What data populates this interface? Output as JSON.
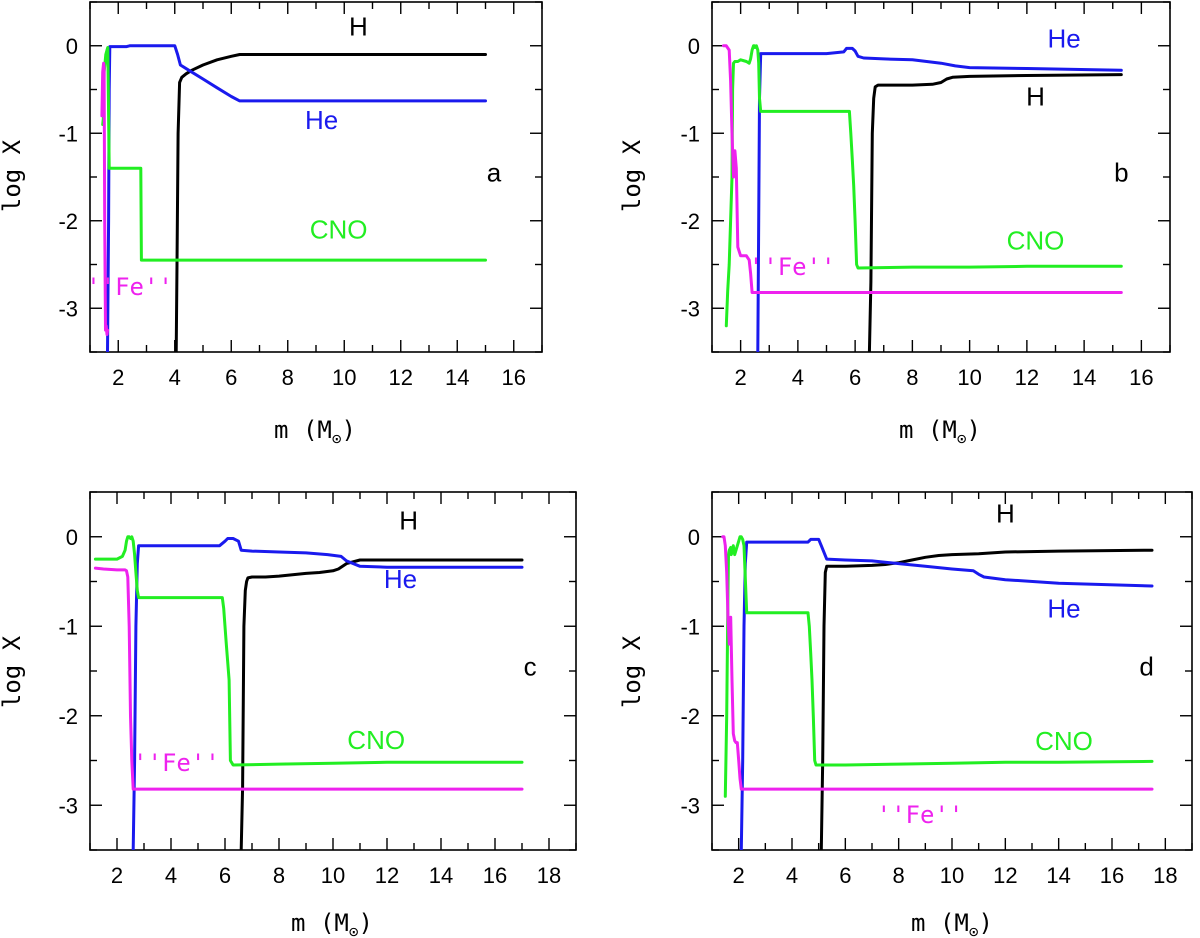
{
  "colors": {
    "H": "#000000",
    "He": "#1a1aee",
    "CNO": "#22ee22",
    "Fe": "#ee22ee"
  },
  "chart_data": [
    {
      "type": "line",
      "panel": "a",
      "xlabel": "m (M",
      "xlabel_sub": "⊙",
      "xlabel_close": ")",
      "ylabel": "log X",
      "xlim": [
        1,
        17
      ],
      "ylim": [
        -3.5,
        0.5
      ],
      "xticks": [
        2,
        4,
        6,
        8,
        10,
        12,
        14,
        16
      ],
      "xtick_labels": [
        "2",
        "4",
        "6",
        "8",
        "10",
        "12",
        "14",
        "16"
      ],
      "yticks": [
        0,
        -1,
        -2,
        -3
      ],
      "ytick_labels": [
        "0",
        "-1",
        "-2",
        "-3"
      ],
      "series": [
        {
          "name": "H",
          "color_key": "H",
          "x": [
            4.05,
            4.08,
            4.12,
            4.17,
            4.25,
            4.4,
            4.6,
            5.0,
            5.5,
            6.0,
            6.3,
            8,
            10,
            12,
            15
          ],
          "y": [
            -3.5,
            -2.5,
            -1.0,
            -0.42,
            -0.36,
            -0.32,
            -0.28,
            -0.22,
            -0.16,
            -0.12,
            -0.1,
            -0.1,
            -0.1,
            -0.1,
            -0.1
          ]
        },
        {
          "name": "He",
          "color_key": "He",
          "x": [
            1.62,
            1.66,
            1.68,
            1.7,
            2.3,
            2.4,
            3.5,
            4.0,
            4.1,
            4.2,
            4.5,
            5.0,
            5.5,
            6.0,
            6.3,
            8,
            10,
            12,
            15
          ],
          "y": [
            -3.5,
            -2.0,
            -0.5,
            -0.01,
            -0.01,
            0.0,
            0.0,
            0.0,
            -0.1,
            -0.22,
            -0.28,
            -0.38,
            -0.48,
            -0.58,
            -0.63,
            -0.63,
            -0.63,
            -0.63,
            -0.63
          ]
        },
        {
          "name": "CNO",
          "color_key": "CNO",
          "x": [
            1.45,
            1.48,
            1.5,
            1.53,
            1.56,
            1.6,
            1.63,
            1.66,
            1.68,
            1.7,
            2.8,
            2.82,
            4,
            6,
            8,
            10,
            12,
            15
          ],
          "y": [
            -0.9,
            -0.8,
            -0.3,
            -0.2,
            -0.1,
            -0.05,
            -0.02,
            -0.8,
            -1.4,
            -1.4,
            -1.4,
            -2.45,
            -2.45,
            -2.45,
            -2.45,
            -2.45,
            -2.45,
            -2.45
          ]
        },
        {
          "name": "Fe",
          "color_key": "Fe",
          "x": [
            1.42,
            1.45,
            1.48,
            1.5,
            1.52,
            1.55,
            1.57,
            1.6,
            1.62
          ],
          "y": [
            -0.8,
            -0.3,
            -0.2,
            -0.25,
            -2.0,
            -3.25,
            -3.2,
            -3.3,
            -3.25
          ]
        }
      ],
      "annotations": [
        {
          "text": "H",
          "color_key": "H",
          "x": 10.5,
          "y": 0.12
        },
        {
          "text": "He",
          "color_key": "He",
          "x": 9.2,
          "y": -0.95
        },
        {
          "text": "CNO",
          "color_key": "CNO",
          "x": 9.8,
          "y": -2.2
        },
        {
          "text": "''Fe''",
          "color_key": "Fe",
          "x": 2.4,
          "y": -2.85
        }
      ],
      "panel_letter": "a",
      "letter_pos": {
        "x": 15.3,
        "y": -1.55
      }
    },
    {
      "type": "line",
      "panel": "b",
      "xlabel": "m (M",
      "xlabel_sub": "⊙",
      "xlabel_close": ")",
      "ylabel": "log X",
      "xlim": [
        1,
        17
      ],
      "ylim": [
        -3.5,
        0.5
      ],
      "xticks": [
        2,
        4,
        6,
        8,
        10,
        12,
        14,
        16
      ],
      "xtick_labels": [
        "2",
        "4",
        "6",
        "8",
        "10",
        "12",
        "14",
        "16"
      ],
      "yticks": [
        0,
        -1,
        -2,
        -3
      ],
      "ytick_labels": [
        "0",
        "-1",
        "-2",
        "-3"
      ],
      "series": [
        {
          "name": "H",
          "color_key": "H",
          "x": [
            6.5,
            6.55,
            6.6,
            6.65,
            6.7,
            6.8,
            7.0,
            7.5,
            8.0,
            8.7,
            9.0,
            9.2,
            9.4,
            10,
            12,
            15.3
          ],
          "y": [
            -3.5,
            -2.7,
            -1.0,
            -0.6,
            -0.47,
            -0.45,
            -0.45,
            -0.45,
            -0.45,
            -0.44,
            -0.42,
            -0.38,
            -0.36,
            -0.35,
            -0.34,
            -0.33
          ]
        },
        {
          "name": "He",
          "color_key": "He",
          "x": [
            2.6,
            2.63,
            2.66,
            2.7,
            4,
            5,
            5.6,
            5.7,
            5.9,
            6.0,
            6.1,
            6.3,
            7,
            8.0,
            9.0,
            9.5,
            10,
            12,
            15.3
          ],
          "y": [
            -3.5,
            -2.0,
            -0.6,
            -0.09,
            -0.09,
            -0.09,
            -0.07,
            -0.03,
            -0.03,
            -0.06,
            -0.12,
            -0.14,
            -0.15,
            -0.16,
            -0.2,
            -0.23,
            -0.25,
            -0.26,
            -0.28
          ]
        },
        {
          "name": "CNO",
          "color_key": "CNO",
          "x": [
            1.5,
            1.55,
            1.6,
            1.65,
            1.7,
            1.72,
            1.75,
            1.8,
            1.9,
            2.0,
            2.2,
            2.3,
            2.35,
            2.4,
            2.45,
            2.48,
            2.5,
            2.55,
            2.6,
            2.63,
            2.66,
            2.7,
            3.5,
            4.5,
            5.8,
            5.85,
            5.9,
            5.95,
            6.0,
            6.05,
            6.1,
            8,
            10,
            12,
            15.3
          ],
          "y": [
            -3.2,
            -2.8,
            -2.5,
            -2.0,
            -1.5,
            -0.5,
            -0.2,
            -0.18,
            -0.18,
            -0.16,
            -0.18,
            -0.2,
            -0.15,
            -0.05,
            0.0,
            0.0,
            -0.02,
            0.0,
            -0.05,
            -0.2,
            -0.6,
            -0.75,
            -0.75,
            -0.75,
            -0.75,
            -1.0,
            -1.3,
            -1.6,
            -2.0,
            -2.5,
            -2.54,
            -2.53,
            -2.53,
            -2.52,
            -2.52
          ]
        },
        {
          "name": "Fe",
          "color_key": "Fe",
          "x": [
            1.4,
            1.45,
            1.5,
            1.6,
            1.65,
            1.7,
            1.75,
            1.8,
            1.85,
            1.9,
            1.95,
            2.0,
            2.2,
            2.3,
            2.35,
            2.4,
            4,
            8,
            12,
            15.3
          ],
          "y": [
            0.0,
            0.0,
            0.0,
            -0.05,
            -0.4,
            -1.0,
            -1.5,
            -1.2,
            -1.4,
            -2.3,
            -2.35,
            -2.4,
            -2.4,
            -2.45,
            -2.6,
            -2.82,
            -2.82,
            -2.82,
            -2.82,
            -2.82
          ]
        }
      ],
      "annotations": [
        {
          "text": "He",
          "color_key": "He",
          "x": 13.3,
          "y": -0.02
        },
        {
          "text": "H",
          "color_key": "H",
          "x": 12.3,
          "y": -0.68
        },
        {
          "text": "CNO",
          "color_key": "CNO",
          "x": 12.3,
          "y": -2.33
        },
        {
          "text": "''Fe''",
          "color_key": "Fe",
          "x": 3.8,
          "y": -2.62
        }
      ],
      "panel_letter": "b",
      "letter_pos": {
        "x": 15.3,
        "y": -1.55
      }
    },
    {
      "type": "line",
      "panel": "c",
      "xlabel": "m (M",
      "xlabel_sub": "⊙",
      "xlabel_close": ")",
      "ylabel": "log X",
      "xlim": [
        1,
        19
      ],
      "ylim": [
        -3.5,
        0.5
      ],
      "xticks": [
        2,
        4,
        6,
        8,
        10,
        12,
        14,
        16,
        18
      ],
      "xtick_labels": [
        "2",
        "4",
        "6",
        "8",
        "10",
        "12",
        "14",
        "16",
        "18"
      ],
      "yticks": [
        0,
        -1,
        -2,
        -3
      ],
      "ytick_labels": [
        "0",
        "-1",
        "-2",
        "-3"
      ],
      "series": [
        {
          "name": "H",
          "color_key": "H",
          "x": [
            6.6,
            6.65,
            6.7,
            6.75,
            6.8,
            6.85,
            7.0,
            7.5,
            8.0,
            9.0,
            9.5,
            10.0,
            10.2,
            10.5,
            11.0,
            11.5,
            12,
            14,
            17
          ],
          "y": [
            -3.5,
            -2.8,
            -1.0,
            -0.6,
            -0.5,
            -0.46,
            -0.45,
            -0.45,
            -0.44,
            -0.41,
            -0.4,
            -0.38,
            -0.36,
            -0.3,
            -0.26,
            -0.26,
            -0.26,
            -0.26,
            -0.26
          ]
        },
        {
          "name": "He",
          "color_key": "He",
          "x": [
            2.6,
            2.65,
            2.7,
            2.75,
            2.8,
            4,
            5,
            5.8,
            6.0,
            6.1,
            6.3,
            6.5,
            6.6,
            7.0,
            8.0,
            9.0,
            9.8,
            10.3,
            10.5,
            11,
            12,
            14,
            17
          ],
          "y": [
            -3.5,
            -2.5,
            -1.0,
            -0.3,
            -0.1,
            -0.1,
            -0.1,
            -0.1,
            -0.05,
            -0.02,
            -0.02,
            -0.05,
            -0.15,
            -0.16,
            -0.17,
            -0.18,
            -0.2,
            -0.22,
            -0.27,
            -0.33,
            -0.34,
            -0.34,
            -0.34
          ]
        },
        {
          "name": "CNO",
          "color_key": "CNO",
          "x": [
            1.2,
            1.5,
            2.0,
            2.2,
            2.3,
            2.35,
            2.4,
            2.45,
            2.5,
            2.55,
            2.6,
            2.65,
            2.7,
            2.75,
            2.8,
            4,
            5.5,
            5.9,
            5.95,
            6.0,
            6.05,
            6.1,
            6.15,
            6.2,
            6.3,
            8,
            10,
            12,
            14,
            17
          ],
          "y": [
            -0.25,
            -0.25,
            -0.25,
            -0.22,
            -0.15,
            -0.05,
            0.0,
            0.0,
            -0.02,
            0.0,
            -0.05,
            -0.2,
            -0.4,
            -0.6,
            -0.68,
            -0.68,
            -0.68,
            -0.68,
            -0.8,
            -1.0,
            -1.2,
            -1.4,
            -1.6,
            -2.5,
            -2.55,
            -2.54,
            -2.53,
            -2.52,
            -2.52,
            -2.52
          ]
        },
        {
          "name": "Fe",
          "color_key": "Fe",
          "x": [
            1.2,
            1.5,
            2.0,
            2.3,
            2.35,
            2.4,
            2.45,
            2.5,
            2.55,
            2.6,
            2.65,
            4,
            8,
            12,
            17
          ],
          "y": [
            -0.35,
            -0.36,
            -0.37,
            -0.37,
            -0.38,
            -0.45,
            -1.0,
            -2.0,
            -2.5,
            -2.82,
            -2.82,
            -2.82,
            -2.82,
            -2.82,
            -2.82
          ]
        }
      ],
      "annotations": [
        {
          "text": "H",
          "color_key": "H",
          "x": 12.8,
          "y": 0.08
        },
        {
          "text": "He",
          "color_key": "He",
          "x": 12.5,
          "y": -0.57
        },
        {
          "text": "CNO",
          "color_key": "CNO",
          "x": 11.6,
          "y": -2.37
        },
        {
          "text": "''Fe''",
          "color_key": "Fe",
          "x": 4.2,
          "y": -2.62
        }
      ],
      "panel_letter": "c",
      "letter_pos": {
        "x": 17.3,
        "y": -1.55
      }
    },
    {
      "type": "line",
      "panel": "d",
      "xlabel": "m (M",
      "xlabel_sub": "⊙",
      "xlabel_close": ")",
      "ylabel": "log X",
      "xlim": [
        1,
        19
      ],
      "ylim": [
        -3.5,
        0.5
      ],
      "xticks": [
        2,
        4,
        6,
        8,
        10,
        12,
        14,
        16,
        18
      ],
      "xtick_labels": [
        "2",
        "4",
        "6",
        "8",
        "10",
        "12",
        "14",
        "16",
        "18"
      ],
      "yticks": [
        0,
        -1,
        -2,
        -3
      ],
      "ytick_labels": [
        "0",
        "-1",
        "-2",
        "-3"
      ],
      "series": [
        {
          "name": "H",
          "color_key": "H",
          "x": [
            5.1,
            5.15,
            5.2,
            5.25,
            5.3,
            5.5,
            6.0,
            7.0,
            7.5,
            8.0,
            8.5,
            9.0,
            9.5,
            10,
            11,
            12,
            14,
            17.5
          ],
          "y": [
            -3.5,
            -2.5,
            -1.0,
            -0.4,
            -0.33,
            -0.33,
            -0.33,
            -0.32,
            -0.31,
            -0.29,
            -0.26,
            -0.23,
            -0.21,
            -0.2,
            -0.19,
            -0.17,
            -0.16,
            -0.15
          ]
        },
        {
          "name": "He",
          "color_key": "He",
          "x": [
            2.1,
            2.15,
            2.2,
            2.25,
            2.3,
            3.5,
            4.6,
            4.7,
            5.0,
            5.1,
            5.3,
            6,
            7,
            8,
            9,
            10,
            10.8,
            11.0,
            11.2,
            12,
            14,
            17.5
          ],
          "y": [
            -3.5,
            -2.5,
            -1.0,
            -0.3,
            -0.06,
            -0.06,
            -0.06,
            -0.03,
            -0.03,
            -0.1,
            -0.25,
            -0.26,
            -0.27,
            -0.3,
            -0.33,
            -0.36,
            -0.38,
            -0.42,
            -0.45,
            -0.48,
            -0.52,
            -0.55
          ]
        },
        {
          "name": "CNO",
          "color_key": "CNO",
          "x": [
            1.5,
            1.55,
            1.6,
            1.62,
            1.65,
            1.7,
            1.72,
            1.75,
            1.8,
            1.85,
            1.9,
            2.0,
            2.05,
            2.1,
            2.15,
            2.2,
            2.3,
            3.5,
            4.6,
            4.65,
            4.7,
            4.75,
            4.8,
            4.85,
            4.9,
            6,
            8,
            10,
            12,
            14,
            17.5
          ],
          "y": [
            -2.9,
            -2.0,
            -0.6,
            -0.2,
            -0.15,
            -0.12,
            -0.2,
            -0.18,
            -0.1,
            -0.2,
            -0.15,
            -0.05,
            0.0,
            0.0,
            -0.03,
            -0.1,
            -0.85,
            -0.85,
            -0.85,
            -1.0,
            -1.3,
            -1.6,
            -2.0,
            -2.5,
            -2.55,
            -2.55,
            -2.54,
            -2.53,
            -2.52,
            -2.52,
            -2.51
          ]
        },
        {
          "name": "Fe",
          "color_key": "Fe",
          "x": [
            1.4,
            1.45,
            1.5,
            1.55,
            1.6,
            1.65,
            1.7,
            1.75,
            1.8,
            1.85,
            1.9,
            1.95,
            2.0,
            2.05,
            2.1,
            4,
            8,
            12,
            17.5
          ],
          "y": [
            0.0,
            0.0,
            -0.1,
            -0.4,
            -0.9,
            -1.2,
            -0.9,
            -1.6,
            -2.2,
            -2.28,
            -2.3,
            -2.3,
            -2.5,
            -2.7,
            -2.82,
            -2.82,
            -2.82,
            -2.82,
            -2.82
          ]
        }
      ],
      "annotations": [
        {
          "text": "H",
          "color_key": "H",
          "x": 12.0,
          "y": 0.16
        },
        {
          "text": "He",
          "color_key": "He",
          "x": 14.2,
          "y": -0.9
        },
        {
          "text": "CNO",
          "color_key": "CNO",
          "x": 14.2,
          "y": -2.38
        },
        {
          "text": "''Fe''",
          "color_key": "Fe",
          "x": 8.8,
          "y": -3.2
        }
      ],
      "panel_letter": "d",
      "letter_pos": {
        "x": 17.3,
        "y": -1.55
      }
    }
  ]
}
